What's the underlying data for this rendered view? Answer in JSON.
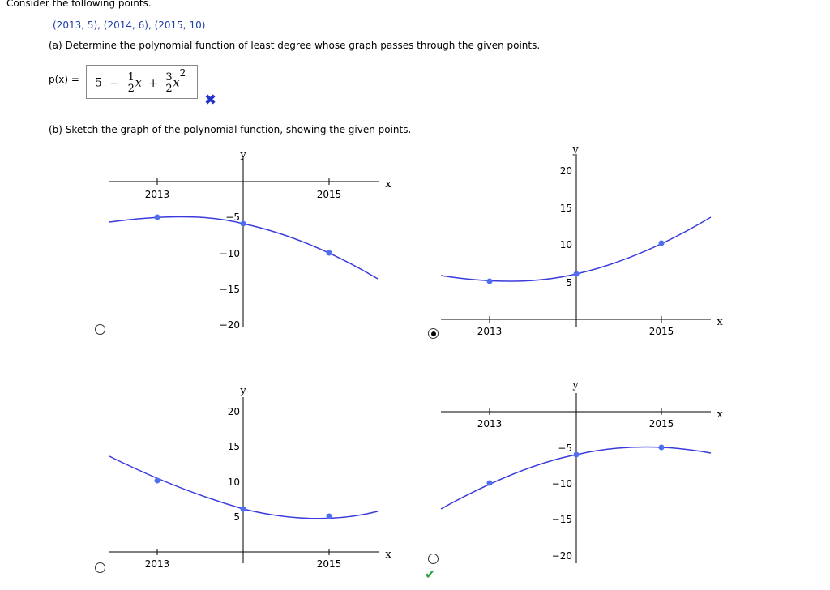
{
  "question": {
    "intro": "Consider the following points.",
    "points": "(2013, 5), (2014, 6), (2015, 10)",
    "part_a": "(a) Determine the polynomial function of least degree whose graph passes through the given points.",
    "px_label": "p(x) =",
    "answer": {
      "const": "5",
      "minus": "−",
      "frac1_num": "1",
      "frac1_den": "2",
      "x1": "x",
      "plus": "+",
      "frac2_num": "3",
      "frac2_den": "2",
      "x2": "x",
      "exp": "2"
    },
    "part_b": "(b) Sketch the graph of the polynomial function, showing the given points."
  },
  "graphs": [
    {
      "id": "graph1",
      "selected": false,
      "y_label": "y",
      "x_label": "x",
      "x_ticks": [
        "2013",
        "2015"
      ],
      "y_ticks": [
        "−5",
        "−10",
        "−15",
        "−20"
      ],
      "points": [
        [
          2013,
          -5
        ],
        [
          2014,
          -6
        ],
        [
          2015,
          -10
        ]
      ]
    },
    {
      "id": "graph2",
      "selected": true,
      "y_label": "y",
      "x_label": "x",
      "x_ticks": [
        "2013",
        "2015"
      ],
      "y_ticks": [
        "5",
        "10",
        "15",
        "20"
      ],
      "points": [
        [
          2013,
          5
        ],
        [
          2014,
          6
        ],
        [
          2015,
          10
        ]
      ]
    },
    {
      "id": "graph3",
      "selected": false,
      "y_label": "y",
      "x_label": "x",
      "x_ticks": [
        "2013",
        "2015"
      ],
      "y_ticks": [
        "5",
        "10",
        "15",
        "20"
      ],
      "points": [
        [
          2013,
          10
        ],
        [
          2014,
          6
        ],
        [
          2015,
          5
        ]
      ]
    },
    {
      "id": "graph4",
      "selected": false,
      "correct_mark": true,
      "y_label": "y",
      "x_label": "x",
      "x_ticks": [
        "2013",
        "2015"
      ],
      "y_ticks": [
        "−5",
        "−10",
        "−15",
        "−20"
      ],
      "points": [
        [
          2013,
          -10
        ],
        [
          2014,
          -6
        ],
        [
          2015,
          -5
        ]
      ]
    }
  ],
  "marks": {
    "wrong": "✖",
    "correct": "✔"
  },
  "colors": {
    "curve": "#3b3bdd",
    "point": "#4f6ef0",
    "label": "#1f3ea8"
  }
}
